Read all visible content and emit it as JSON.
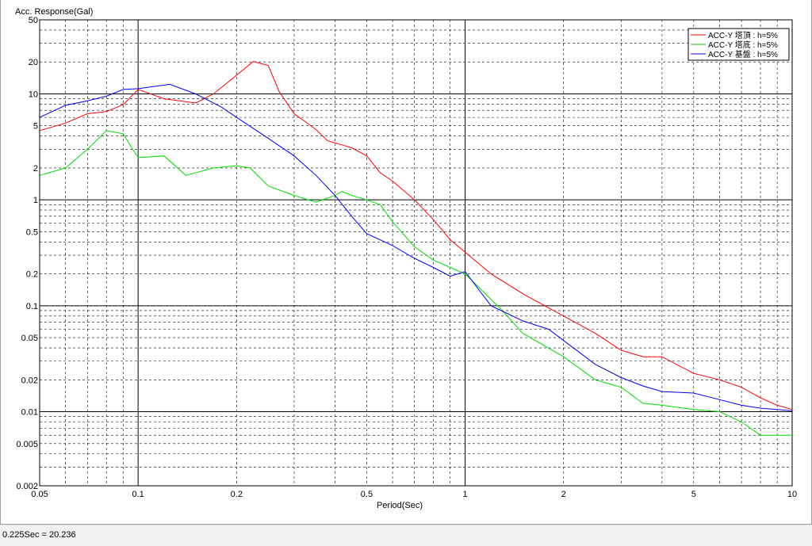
{
  "status": {
    "text": "0.225Sec = 20.236"
  },
  "chart_data": {
    "type": "line",
    "title": "",
    "ylabel": "Acc. Response(Gal)",
    "xlabel": "Period(Sec)",
    "xscale": "log",
    "yscale": "log",
    "xlim": [
      0.05,
      10
    ],
    "ylim": [
      0.002,
      50
    ],
    "grid": true,
    "legend_position": "top-right",
    "x_ticks": [
      {
        "v": 0.05,
        "label": "0.05"
      },
      {
        "v": 0.1,
        "label": "0.1"
      },
      {
        "v": 0.2,
        "label": "0.2"
      },
      {
        "v": 0.5,
        "label": "0.5"
      },
      {
        "v": 1,
        "label": "1"
      },
      {
        "v": 2,
        "label": "2"
      },
      {
        "v": 5,
        "label": "5"
      },
      {
        "v": 10,
        "label": "10"
      }
    ],
    "y_ticks": [
      {
        "v": 50,
        "label": "50"
      },
      {
        "v": 20,
        "label": "20"
      },
      {
        "v": 10,
        "label": "10"
      },
      {
        "v": 5,
        "label": "5"
      },
      {
        "v": 2,
        "label": "2"
      },
      {
        "v": 1,
        "label": "1"
      },
      {
        "v": 0.5,
        "label": "0.5"
      },
      {
        "v": 0.2,
        "label": "0.2"
      },
      {
        "v": 0.1,
        "label": "0.1"
      },
      {
        "v": 0.05,
        "label": "0.05"
      },
      {
        "v": 0.02,
        "label": "0.02"
      },
      {
        "v": 0.01,
        "label": "0.01"
      },
      {
        "v": 0.005,
        "label": "0.005"
      },
      {
        "v": 0.002,
        "label": "0.002"
      }
    ],
    "series": [
      {
        "name": "ACC-Y 塔頂 : h=5%",
        "color": "#ff0000",
        "points": [
          [
            0.05,
            4.5
          ],
          [
            0.06,
            5.3
          ],
          [
            0.07,
            6.5
          ],
          [
            0.08,
            6.8
          ],
          [
            0.09,
            7.9
          ],
          [
            0.1,
            11.0
          ],
          [
            0.12,
            9.0
          ],
          [
            0.15,
            8.2
          ],
          [
            0.17,
            10.0
          ],
          [
            0.2,
            15.0
          ],
          [
            0.225,
            20.2
          ],
          [
            0.25,
            18.5
          ],
          [
            0.27,
            10.5
          ],
          [
            0.3,
            6.5
          ],
          [
            0.35,
            4.6
          ],
          [
            0.38,
            3.6
          ],
          [
            0.42,
            3.3
          ],
          [
            0.45,
            3.1
          ],
          [
            0.5,
            2.6
          ],
          [
            0.55,
            1.8
          ],
          [
            0.6,
            1.5
          ],
          [
            0.7,
            1.0
          ],
          [
            0.8,
            0.65
          ],
          [
            0.9,
            0.42
          ],
          [
            1.0,
            0.32
          ],
          [
            1.2,
            0.2
          ],
          [
            1.5,
            0.13
          ],
          [
            2.0,
            0.08
          ],
          [
            2.5,
            0.055
          ],
          [
            3.0,
            0.038
          ],
          [
            3.5,
            0.033
          ],
          [
            4.0,
            0.033
          ],
          [
            5.0,
            0.023
          ],
          [
            6.0,
            0.02
          ],
          [
            7.0,
            0.017
          ],
          [
            8.0,
            0.0135
          ],
          [
            9.0,
            0.0115
          ],
          [
            10.0,
            0.0105
          ]
        ]
      },
      {
        "name": "ACC-Y 塔底 : h=5%",
        "color": "#00dd00",
        "points": [
          [
            0.05,
            1.7
          ],
          [
            0.06,
            2.0
          ],
          [
            0.07,
            3.0
          ],
          [
            0.08,
            4.5
          ],
          [
            0.09,
            4.2
          ],
          [
            0.095,
            3.2
          ],
          [
            0.1,
            2.5
          ],
          [
            0.12,
            2.6
          ],
          [
            0.14,
            1.7
          ],
          [
            0.17,
            2.0
          ],
          [
            0.2,
            2.1
          ],
          [
            0.22,
            2.0
          ],
          [
            0.25,
            1.35
          ],
          [
            0.3,
            1.1
          ],
          [
            0.35,
            0.95
          ],
          [
            0.4,
            1.1
          ],
          [
            0.42,
            1.2
          ],
          [
            0.45,
            1.1
          ],
          [
            0.5,
            1.0
          ],
          [
            0.55,
            0.9
          ],
          [
            0.6,
            0.62
          ],
          [
            0.7,
            0.36
          ],
          [
            0.8,
            0.27
          ],
          [
            0.9,
            0.23
          ],
          [
            1.0,
            0.2
          ],
          [
            1.3,
            0.09
          ],
          [
            1.5,
            0.055
          ],
          [
            2.0,
            0.033
          ],
          [
            2.5,
            0.02
          ],
          [
            3.0,
            0.017
          ],
          [
            3.5,
            0.012
          ],
          [
            4.0,
            0.0115
          ],
          [
            5.0,
            0.0105
          ],
          [
            6.0,
            0.01
          ],
          [
            7.0,
            0.008
          ],
          [
            8.0,
            0.006
          ],
          [
            9.0,
            0.006
          ],
          [
            10.0,
            0.006
          ]
        ]
      },
      {
        "name": "ACC-Y 基盤 : h=5%",
        "color": "#0000ff",
        "points": [
          [
            0.05,
            6.0
          ],
          [
            0.06,
            7.8
          ],
          [
            0.07,
            8.6
          ],
          [
            0.08,
            9.5
          ],
          [
            0.09,
            11.0
          ],
          [
            0.1,
            11.2
          ],
          [
            0.125,
            12.3
          ],
          [
            0.15,
            10.0
          ],
          [
            0.18,
            7.5
          ],
          [
            0.2,
            6.0
          ],
          [
            0.25,
            3.8
          ],
          [
            0.3,
            2.6
          ],
          [
            0.35,
            1.7
          ],
          [
            0.4,
            1.1
          ],
          [
            0.45,
            0.7
          ],
          [
            0.5,
            0.48
          ],
          [
            0.6,
            0.37
          ],
          [
            0.7,
            0.28
          ],
          [
            0.8,
            0.23
          ],
          [
            0.9,
            0.19
          ],
          [
            1.0,
            0.21
          ],
          [
            1.2,
            0.1
          ],
          [
            1.5,
            0.072
          ],
          [
            1.8,
            0.06
          ],
          [
            2.0,
            0.047
          ],
          [
            2.5,
            0.028
          ],
          [
            3.0,
            0.021
          ],
          [
            3.5,
            0.0175
          ],
          [
            4.0,
            0.0155
          ],
          [
            5.0,
            0.015
          ],
          [
            6.0,
            0.013
          ],
          [
            7.0,
            0.0115
          ],
          [
            8.0,
            0.0108
          ],
          [
            9.0,
            0.0105
          ],
          [
            10.0,
            0.0102
          ]
        ]
      }
    ]
  }
}
